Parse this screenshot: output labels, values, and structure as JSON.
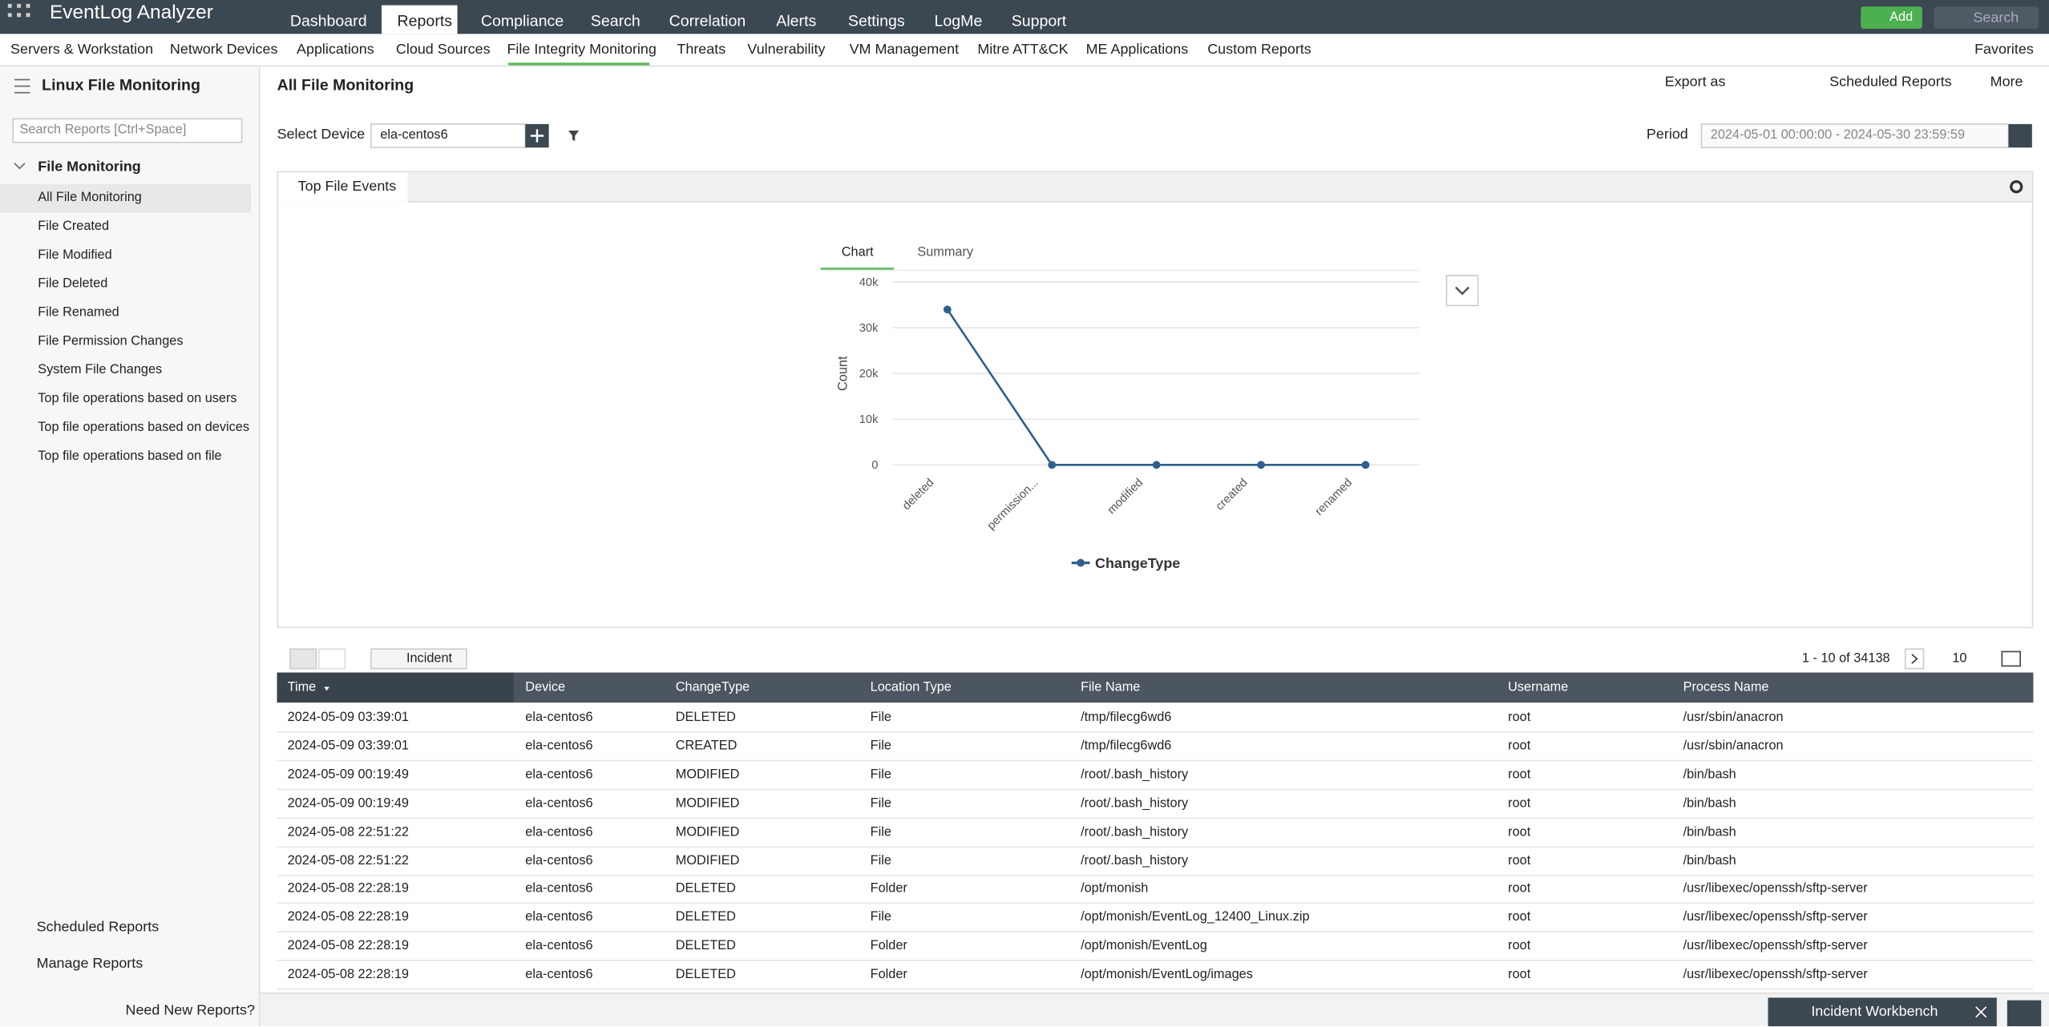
{
  "header": {
    "logo": "EventLog Analyzer",
    "nav": [
      "Dashboard",
      "Reports",
      "Compliance",
      "Search",
      "Correlation",
      "Alerts",
      "Settings",
      "LogMe",
      "Support"
    ],
    "add": "Add",
    "search": "Search"
  },
  "subnav": {
    "items": [
      "Servers & Workstation",
      "Network Devices",
      "Applications",
      "Cloud Sources",
      "File Integrity Monitoring",
      "Threats",
      "Vulnerability",
      "VM Management",
      "Mitre ATT&CK",
      "ME Applications",
      "Custom Reports"
    ],
    "favorites": "Favorites"
  },
  "sidebar": {
    "title": "Linux File Monitoring",
    "search_placeholder": "Search Reports [Ctrl+Space]",
    "group": "File Monitoring",
    "items": [
      "All File Monitoring",
      "File Created",
      "File Modified",
      "File Deleted",
      "File Renamed",
      "File Permission Changes",
      "System File Changes",
      "Top file operations based on users",
      "Top file operations based on devices",
      "Top file operations based on file"
    ],
    "footer": [
      "Scheduled Reports",
      "Manage Reports"
    ],
    "help": "Need New Reports?"
  },
  "report": {
    "title": "All File Monitoring",
    "export": "Export as",
    "scheduled": "Scheduled Reports",
    "more": "More",
    "device_label": "Select Device",
    "device": "ela-centos6",
    "period_label": "Period",
    "period": "2024-05-01 00:00:00 - 2024-05-30 23:59:59",
    "panel_tab": "Top File Events",
    "chart_tabs": [
      "Chart",
      "Summary"
    ]
  },
  "chart_data": {
    "type": "line",
    "y_label": "Count",
    "categories": [
      "deleted",
      "permission...",
      "modified",
      "created",
      "renamed"
    ],
    "series": [
      {
        "name": "ChangeType",
        "color": "#2e5f8f",
        "values": [
          34000,
          0,
          0,
          0,
          0
        ]
      }
    ],
    "ylim": [
      0,
      40000
    ],
    "yticks": [
      0,
      {
        "value": 10000,
        "label": "10k"
      },
      {
        "value": 20000,
        "label": "20k"
      },
      {
        "value": 30000,
        "label": "30k"
      },
      {
        "value": 40000,
        "label": "40k"
      }
    ],
    "grid": true
  },
  "table": {
    "incident": "Incident",
    "pagination": "1 - 10 of 34138",
    "page_size": 10,
    "columns": [
      "Time",
      "Device",
      "ChangeType",
      "Location Type",
      "File Name",
      "Username",
      "Process Name"
    ],
    "rows": [
      [
        "2024-05-09 03:39:01",
        "ela-centos6",
        "DELETED",
        "File",
        "/tmp/filecg6wd6",
        "root",
        "/usr/sbin/anacron"
      ],
      [
        "2024-05-09 03:39:01",
        "ela-centos6",
        "CREATED",
        "File",
        "/tmp/filecg6wd6",
        "root",
        "/usr/sbin/anacron"
      ],
      [
        "2024-05-09 00:19:49",
        "ela-centos6",
        "MODIFIED",
        "File",
        "/root/.bash_history",
        "root",
        "/bin/bash"
      ],
      [
        "2024-05-09 00:19:49",
        "ela-centos6",
        "MODIFIED",
        "File",
        "/root/.bash_history",
        "root",
        "/bin/bash"
      ],
      [
        "2024-05-08 22:51:22",
        "ela-centos6",
        "MODIFIED",
        "File",
        "/root/.bash_history",
        "root",
        "/bin/bash"
      ],
      [
        "2024-05-08 22:51:22",
        "ela-centos6",
        "MODIFIED",
        "File",
        "/root/.bash_history",
        "root",
        "/bin/bash"
      ],
      [
        "2024-05-08 22:28:19",
        "ela-centos6",
        "DELETED",
        "Folder",
        "/opt/monish",
        "root",
        "/usr/libexec/openssh/sftp-server"
      ],
      [
        "2024-05-08 22:28:19",
        "ela-centos6",
        "DELETED",
        "File",
        "/opt/monish/EventLog_12400_Linux.zip",
        "root",
        "/usr/libexec/openssh/sftp-server"
      ],
      [
        "2024-05-08 22:28:19",
        "ela-centos6",
        "DELETED",
        "Folder",
        "/opt/monish/EventLog",
        "root",
        "/usr/libexec/openssh/sftp-server"
      ],
      [
        "2024-05-08 22:28:19",
        "ela-centos6",
        "DELETED",
        "Folder",
        "/opt/monish/EventLog/images",
        "root",
        "/usr/libexec/openssh/sftp-server"
      ]
    ]
  },
  "footer": {
    "workbench": "Incident Workbench"
  }
}
